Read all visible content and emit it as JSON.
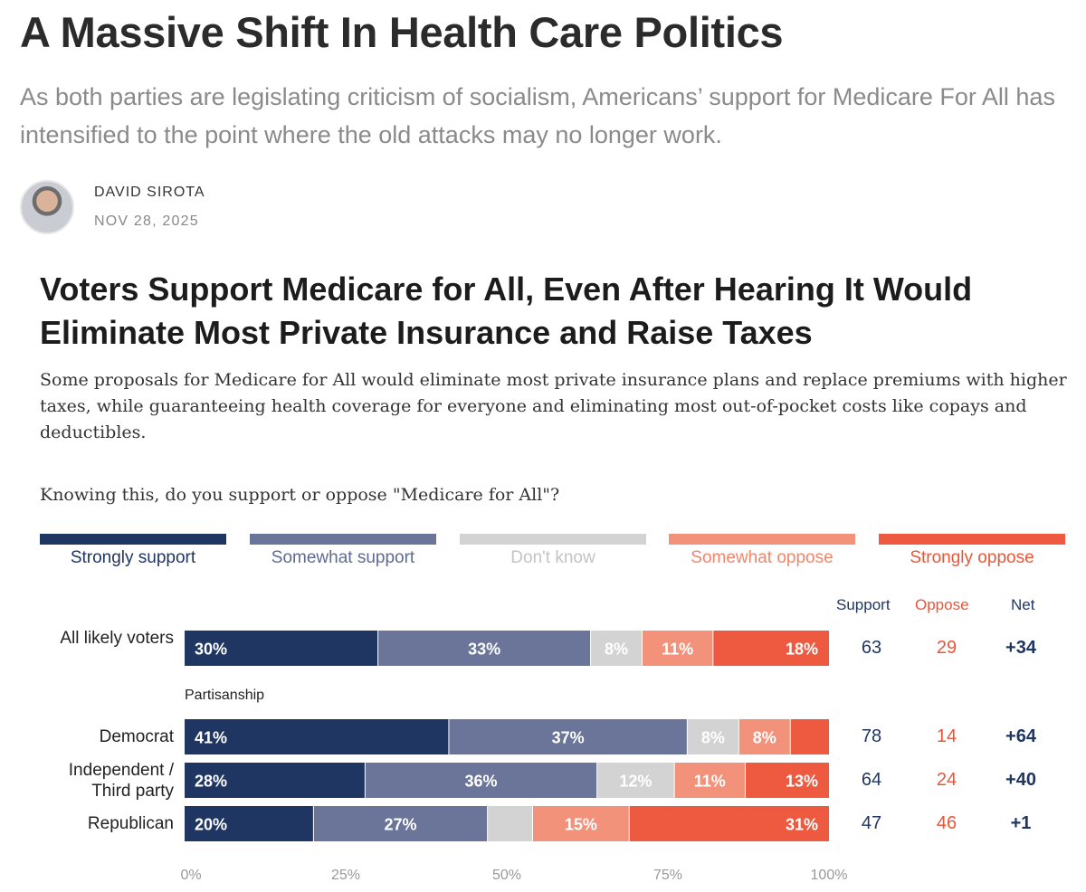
{
  "article": {
    "headline": "A Massive Shift In Health Care Politics",
    "subhead": "As both parties are legislating criticism of socialism, Americans’ support for Medicare For All has intensified to the point where the old attacks may no longer work.",
    "author": "DAVID SIROTA",
    "date": "NOV 28, 2025",
    "avatar_icon": "author-avatar"
  },
  "chart_data": {
    "type": "bar",
    "orientation": "horizontal",
    "stacked": true,
    "title": "Voters Support Medicare for All, Even After Hearing It Would Eliminate Most Private Insurance and Raise Taxes",
    "description": "Some proposals for Medicare for All would eliminate most private insurance plans and replace premiums with higher taxes, while guaranteeing health coverage for everyone and eliminating most out-of-pocket costs like copays and deductibles.",
    "question": "Knowing this, do you support or oppose \"Medicare for All\"?",
    "group_label": "Partisanship",
    "xlim": [
      0,
      100
    ],
    "xticks": [
      "0%",
      "25%",
      "50%",
      "75%",
      "100%"
    ],
    "series": [
      {
        "name": "Strongly support",
        "color": "#1f3662",
        "text_color": "#1f3662"
      },
      {
        "name": "Somewhat support",
        "color": "#6b7599",
        "text_color": "#5f6a8f"
      },
      {
        "name": "Don't know",
        "color": "#d3d3d3",
        "text_color": "#c4c4c4"
      },
      {
        "name": "Somewhat oppose",
        "color": "#f2927a",
        "text_color": "#f0866c"
      },
      {
        "name": "Strongly oppose",
        "color": "#ee5a3f",
        "text_color": "#ea5638"
      }
    ],
    "columns": {
      "support": "Support",
      "oppose": "Oppose",
      "net": "Net"
    },
    "column_colors": {
      "support": "#1f3662",
      "oppose": "#e8553a",
      "net": "#1f3662"
    },
    "categories": [
      {
        "label": "All likely voters",
        "values": [
          30,
          33,
          8,
          11,
          18
        ],
        "labels": [
          "30%",
          "33%",
          "8%",
          "11%",
          "18%"
        ],
        "support": "63",
        "oppose": "29",
        "net": "+34"
      },
      {
        "label": "Democrat",
        "values": [
          41,
          37,
          8,
          8,
          6
        ],
        "labels": [
          "41%",
          "37%",
          "8%",
          "8%",
          ""
        ],
        "support": "78",
        "oppose": "14",
        "net": "+64"
      },
      {
        "label": "Independent / Third party",
        "values": [
          28,
          36,
          12,
          11,
          13
        ],
        "labels": [
          "28%",
          "36%",
          "12%",
          "11%",
          "13%"
        ],
        "support": "64",
        "oppose": "24",
        "net": "+40"
      },
      {
        "label": "Republican",
        "values": [
          20,
          27,
          7,
          15,
          31
        ],
        "labels": [
          "20%",
          "27%",
          "",
          "15%",
          "31%"
        ],
        "support": "47",
        "oppose": "46",
        "net": "+1"
      }
    ]
  }
}
